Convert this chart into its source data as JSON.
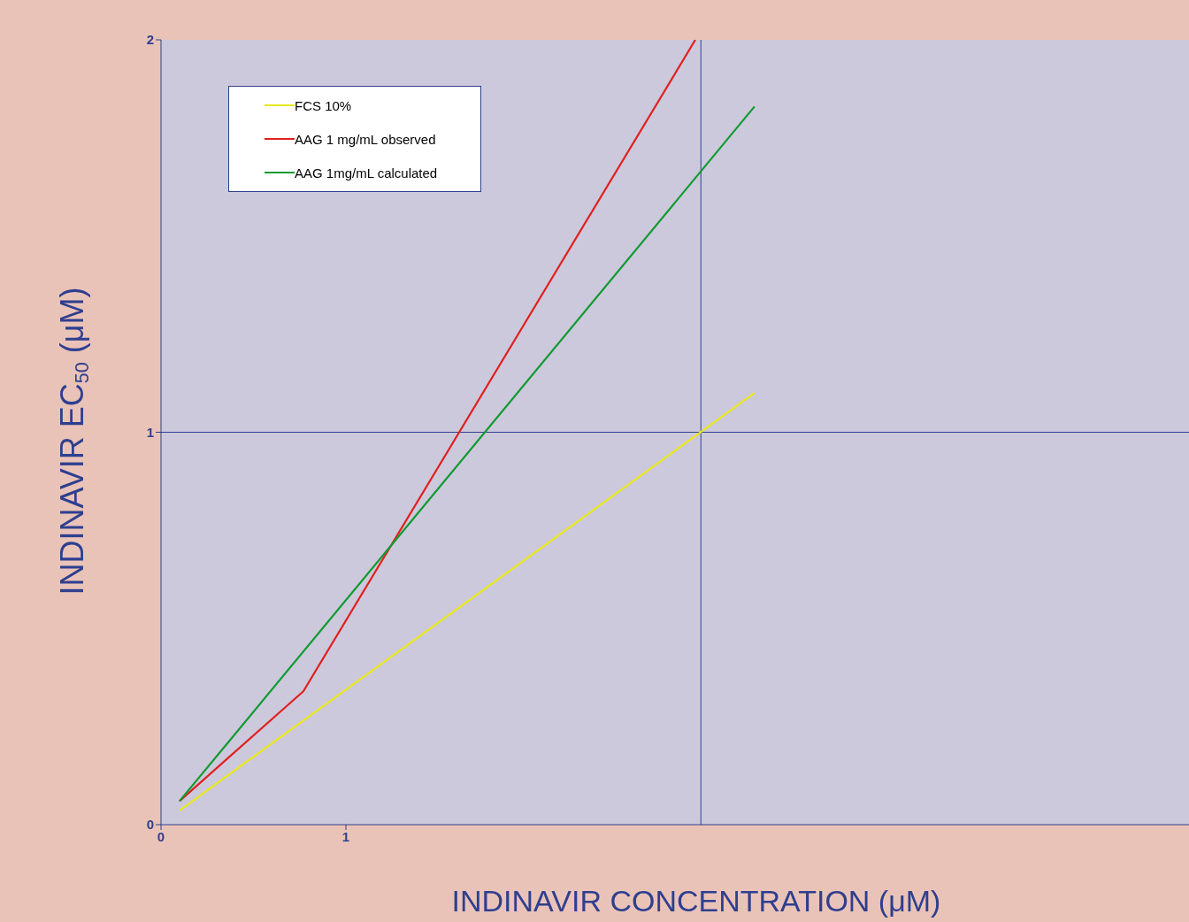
{
  "chart_data": {
    "type": "line",
    "xlabel": "INDINAVIR CONCENTRATION (μM)",
    "ylabel": "INDINAVIR EC$_{50}$ (μM)",
    "xlim": [
      0,
      5.56
    ],
    "xticks": [
      0,
      1
    ],
    "ylim": [
      0,
      2
    ],
    "yticks": [
      0,
      1,
      2
    ],
    "legend": "top left",
    "marker": "none",
    "line_style": "solid",
    "ref_lines": [
      {
        "axis": "x",
        "value": 2.92,
        "label": null
      },
      {
        "axis": "y",
        "value": 1,
        "label": null
      }
    ],
    "series": [
      {
        "name": "FCS 10%",
        "color": "#e8e81c",
        "x": [
          0.1,
          3.21
        ],
        "values": [
          0.036,
          1.1
        ]
      },
      {
        "name": "AAG 1 mg/mL observed",
        "color": "#e02020",
        "x": [
          0.1,
          0.77,
          2.89
        ],
        "values": [
          0.06,
          0.34,
          2.0
        ]
      },
      {
        "name": "AAG 1mg/mL calculated",
        "color": "#109a30",
        "x": [
          0.1,
          3.21
        ],
        "values": [
          0.06,
          1.83
        ]
      }
    ]
  }
}
